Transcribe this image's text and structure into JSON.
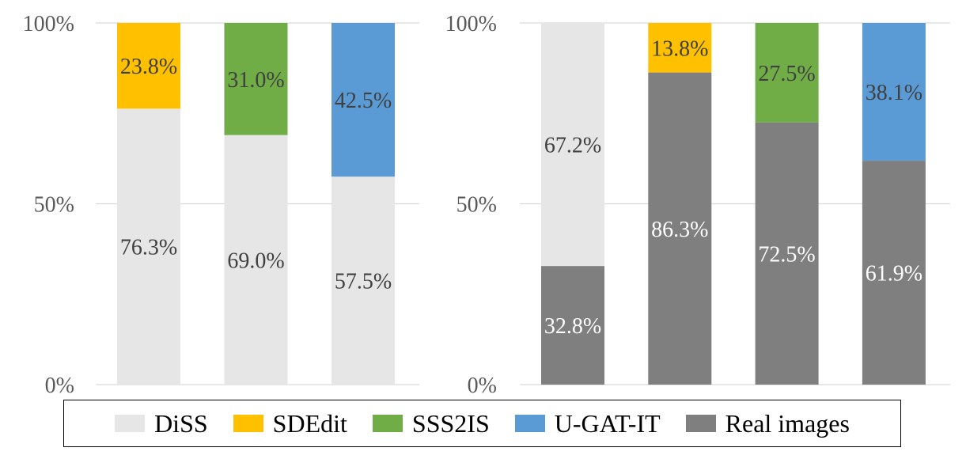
{
  "chart_data": [
    {
      "type": "bar",
      "stacked": true,
      "normalized": true,
      "title": "",
      "xlabel": "",
      "ylabel": "",
      "ylim": [
        0,
        100
      ],
      "yticks": [
        "0%",
        "50%",
        "100%"
      ],
      "grid": true,
      "categories": [
        "SDEdit",
        "SSS2IS",
        "U-GAT-IT"
      ],
      "bars": [
        {
          "segments": [
            {
              "series": "DiSS",
              "value": 76.3,
              "label": "76.3%"
            },
            {
              "series": "SDEdit",
              "value": 23.8,
              "label": "23.8%"
            }
          ]
        },
        {
          "segments": [
            {
              "series": "DiSS",
              "value": 69.0,
              "label": "69.0%"
            },
            {
              "series": "SSS2IS",
              "value": 31.0,
              "label": "31.0%"
            }
          ]
        },
        {
          "segments": [
            {
              "series": "DiSS",
              "value": 57.5,
              "label": "57.5%"
            },
            {
              "series": "U-GAT-IT",
              "value": 42.5,
              "label": "42.5%"
            }
          ]
        }
      ]
    },
    {
      "type": "bar",
      "stacked": true,
      "normalized": true,
      "title": "",
      "xlabel": "",
      "ylabel": "",
      "ylim": [
        0,
        100
      ],
      "yticks": [
        "0%",
        "50%",
        "100%"
      ],
      "grid": true,
      "categories": [
        "DiSS",
        "SDEdit",
        "SSS2IS",
        "U-GAT-IT"
      ],
      "bars": [
        {
          "segments": [
            {
              "series": "Real images",
              "value": 32.8,
              "label": "32.8%"
            },
            {
              "series": "DiSS",
              "value": 67.2,
              "label": "67.2%"
            }
          ]
        },
        {
          "segments": [
            {
              "series": "Real images",
              "value": 86.3,
              "label": "86.3%"
            },
            {
              "series": "SDEdit",
              "value": 13.8,
              "label": "13.8%"
            }
          ]
        },
        {
          "segments": [
            {
              "series": "Real images",
              "value": 72.5,
              "label": "72.5%"
            },
            {
              "series": "SSS2IS",
              "value": 27.5,
              "label": "27.5%"
            }
          ]
        },
        {
          "segments": [
            {
              "series": "Real images",
              "value": 61.9,
              "label": "61.9%"
            },
            {
              "series": "U-GAT-IT",
              "value": 38.1,
              "label": "38.1%"
            }
          ]
        }
      ]
    }
  ],
  "legend": {
    "placement": "bottom",
    "items": [
      {
        "label": "DiSS",
        "color": "#e6e6e6"
      },
      {
        "label": "SDEdit",
        "color": "#ffc000"
      },
      {
        "label": "SSS2IS",
        "color": "#70ad47"
      },
      {
        "label": "U-GAT-IT",
        "color": "#5b9bd5"
      },
      {
        "label": "Real images",
        "color": "#7f7f7f"
      }
    ]
  },
  "series_colors": {
    "DiSS": "#e6e6e6",
    "SDEdit": "#ffc000",
    "SSS2IS": "#70ad47",
    "U-GAT-IT": "#5b9bd5",
    "Real images": "#7f7f7f"
  },
  "label_colors": {
    "Real images": "#ffffff",
    "default": "#404040"
  }
}
